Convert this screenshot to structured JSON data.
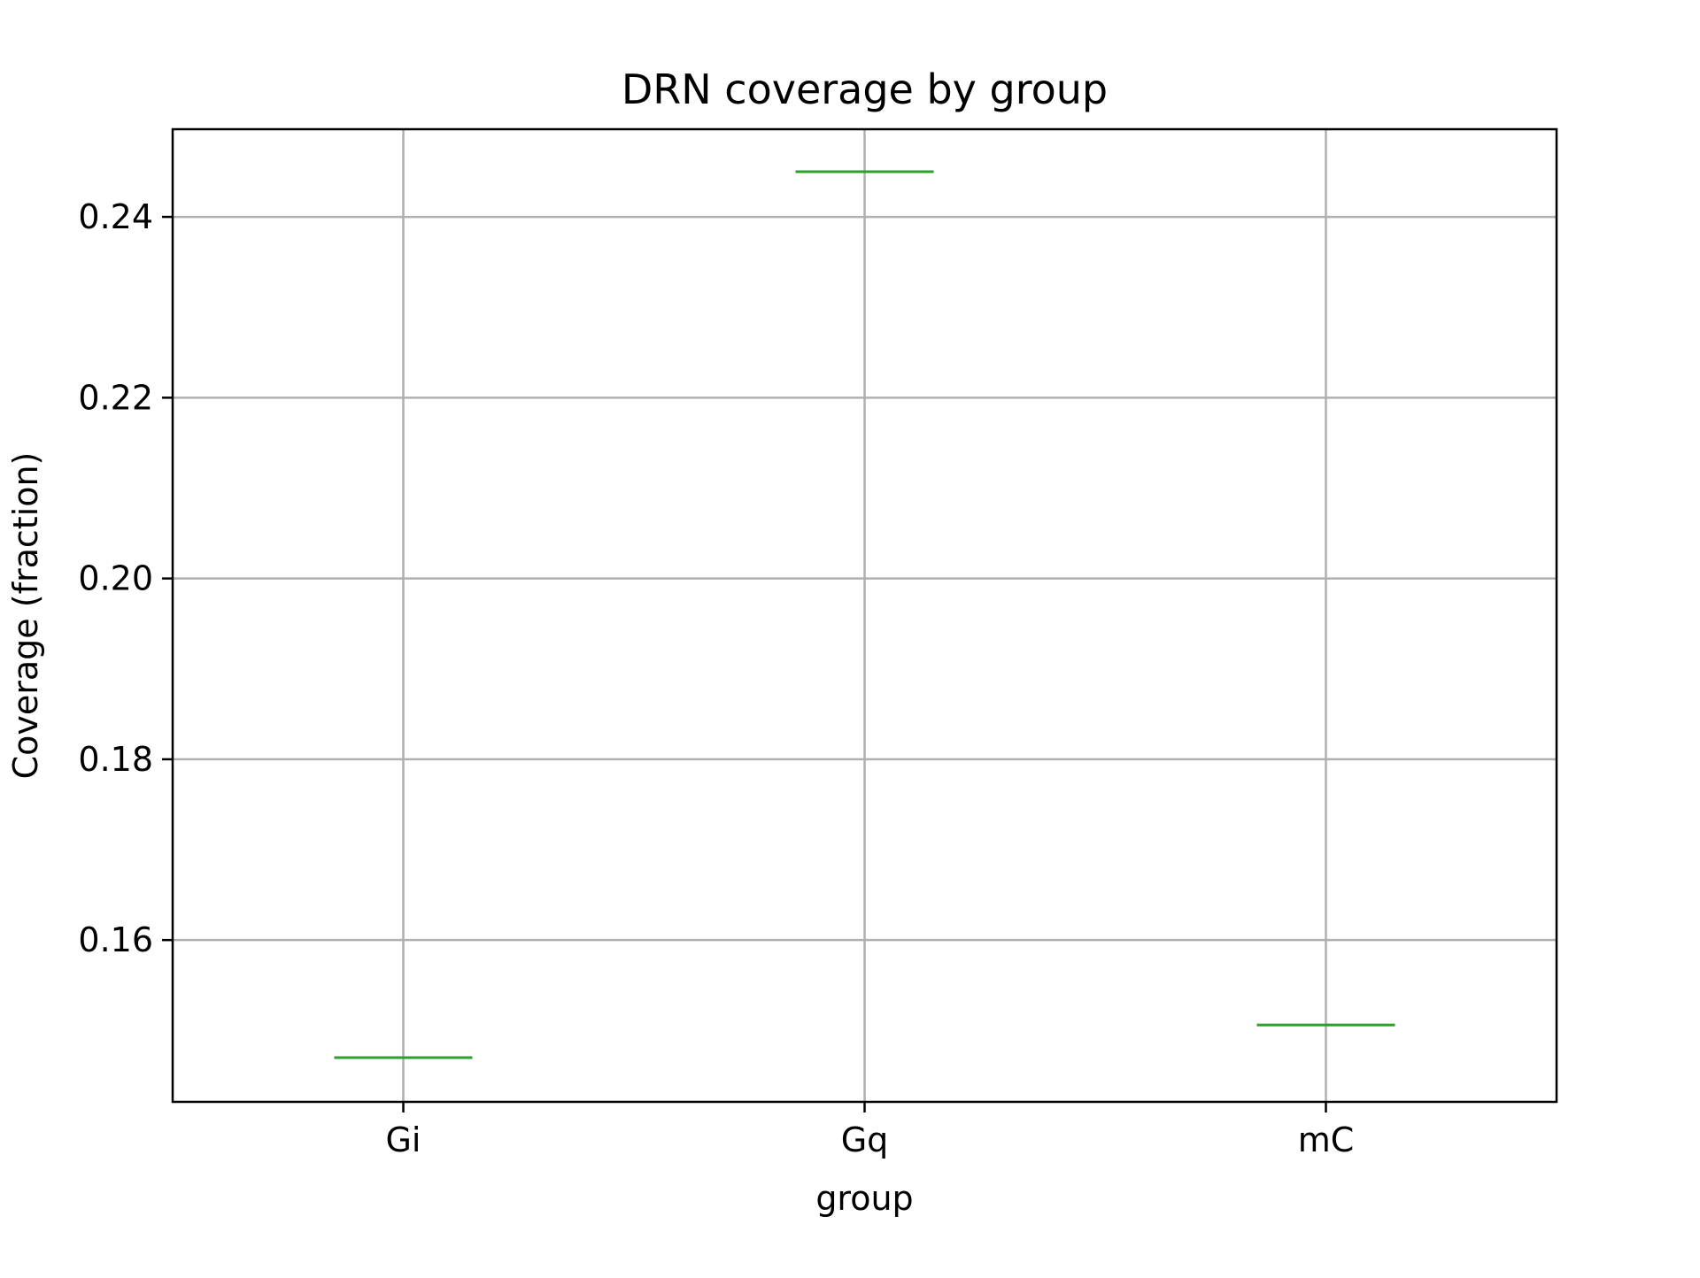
{
  "chart_data": {
    "type": "box",
    "title": "DRN coverage by group",
    "xlabel": "group",
    "ylabel": "Coverage (fraction)",
    "categories": [
      "Gi",
      "Gq",
      "mC"
    ],
    "values": [
      0.147,
      0.245,
      0.1506
    ],
    "ylim": [
      0.1421,
      0.2497
    ],
    "yticks": [
      0.16,
      0.18,
      0.2,
      0.22,
      0.24
    ],
    "ytick_labels": [
      "0.16",
      "0.18",
      "0.20",
      "0.22",
      "0.24"
    ],
    "grid": true,
    "legend": "none",
    "median_color": "#2ca02c",
    "grid_color": "#b0b0b0",
    "axis_color": "#000000"
  }
}
